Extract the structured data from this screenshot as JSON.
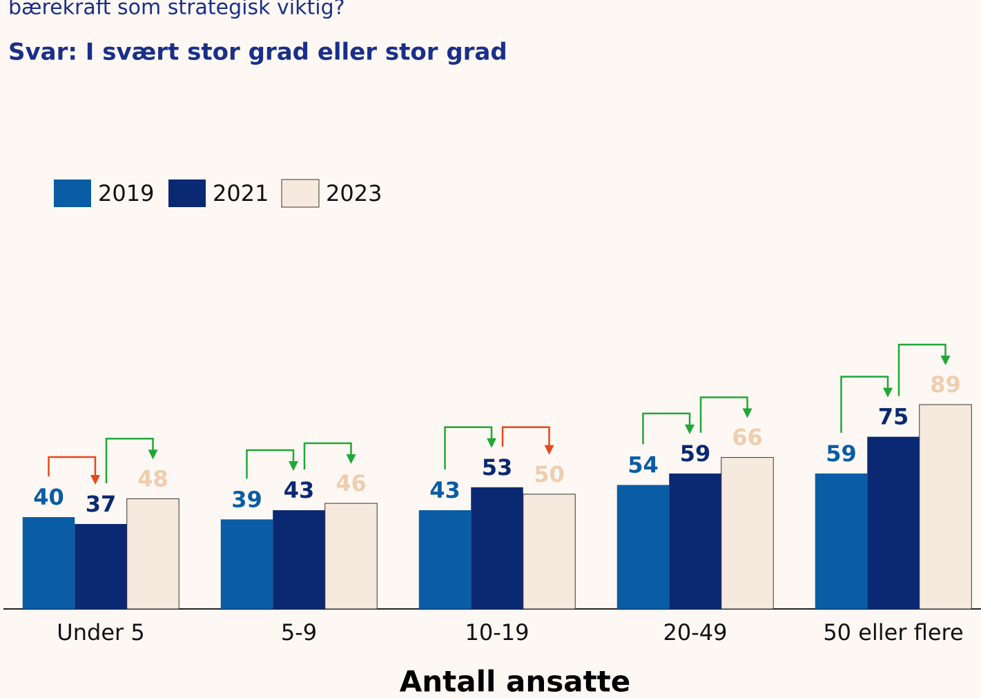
{
  "chart_data": {
    "type": "bar",
    "title": "bærekraft som strategisk viktig?",
    "subtitle": "Svar: I svært stor grad eller stor grad",
    "x_label": "Antall ansatte",
    "categories": [
      "Under 5",
      "5-9",
      "10-19",
      "20-49",
      "50 eller flere"
    ],
    "series": [
      {
        "name": "2019",
        "color": "#0a5ca5",
        "label_color": "#0a5ca5",
        "values": [
          40,
          39,
          43,
          54,
          59
        ]
      },
      {
        "name": "2021",
        "color": "#0b2873",
        "label_color": "#0b2873",
        "values": [
          37,
          43,
          53,
          59,
          75
        ]
      },
      {
        "name": "2023",
        "color": "#f6e9dd",
        "label_color": "#efcdb0",
        "values": [
          48,
          46,
          50,
          66,
          89
        ]
      }
    ],
    "arrow_colors": {
      "up": "#1fa836",
      "down": "#e8471c"
    },
    "legend": "upper left"
  }
}
